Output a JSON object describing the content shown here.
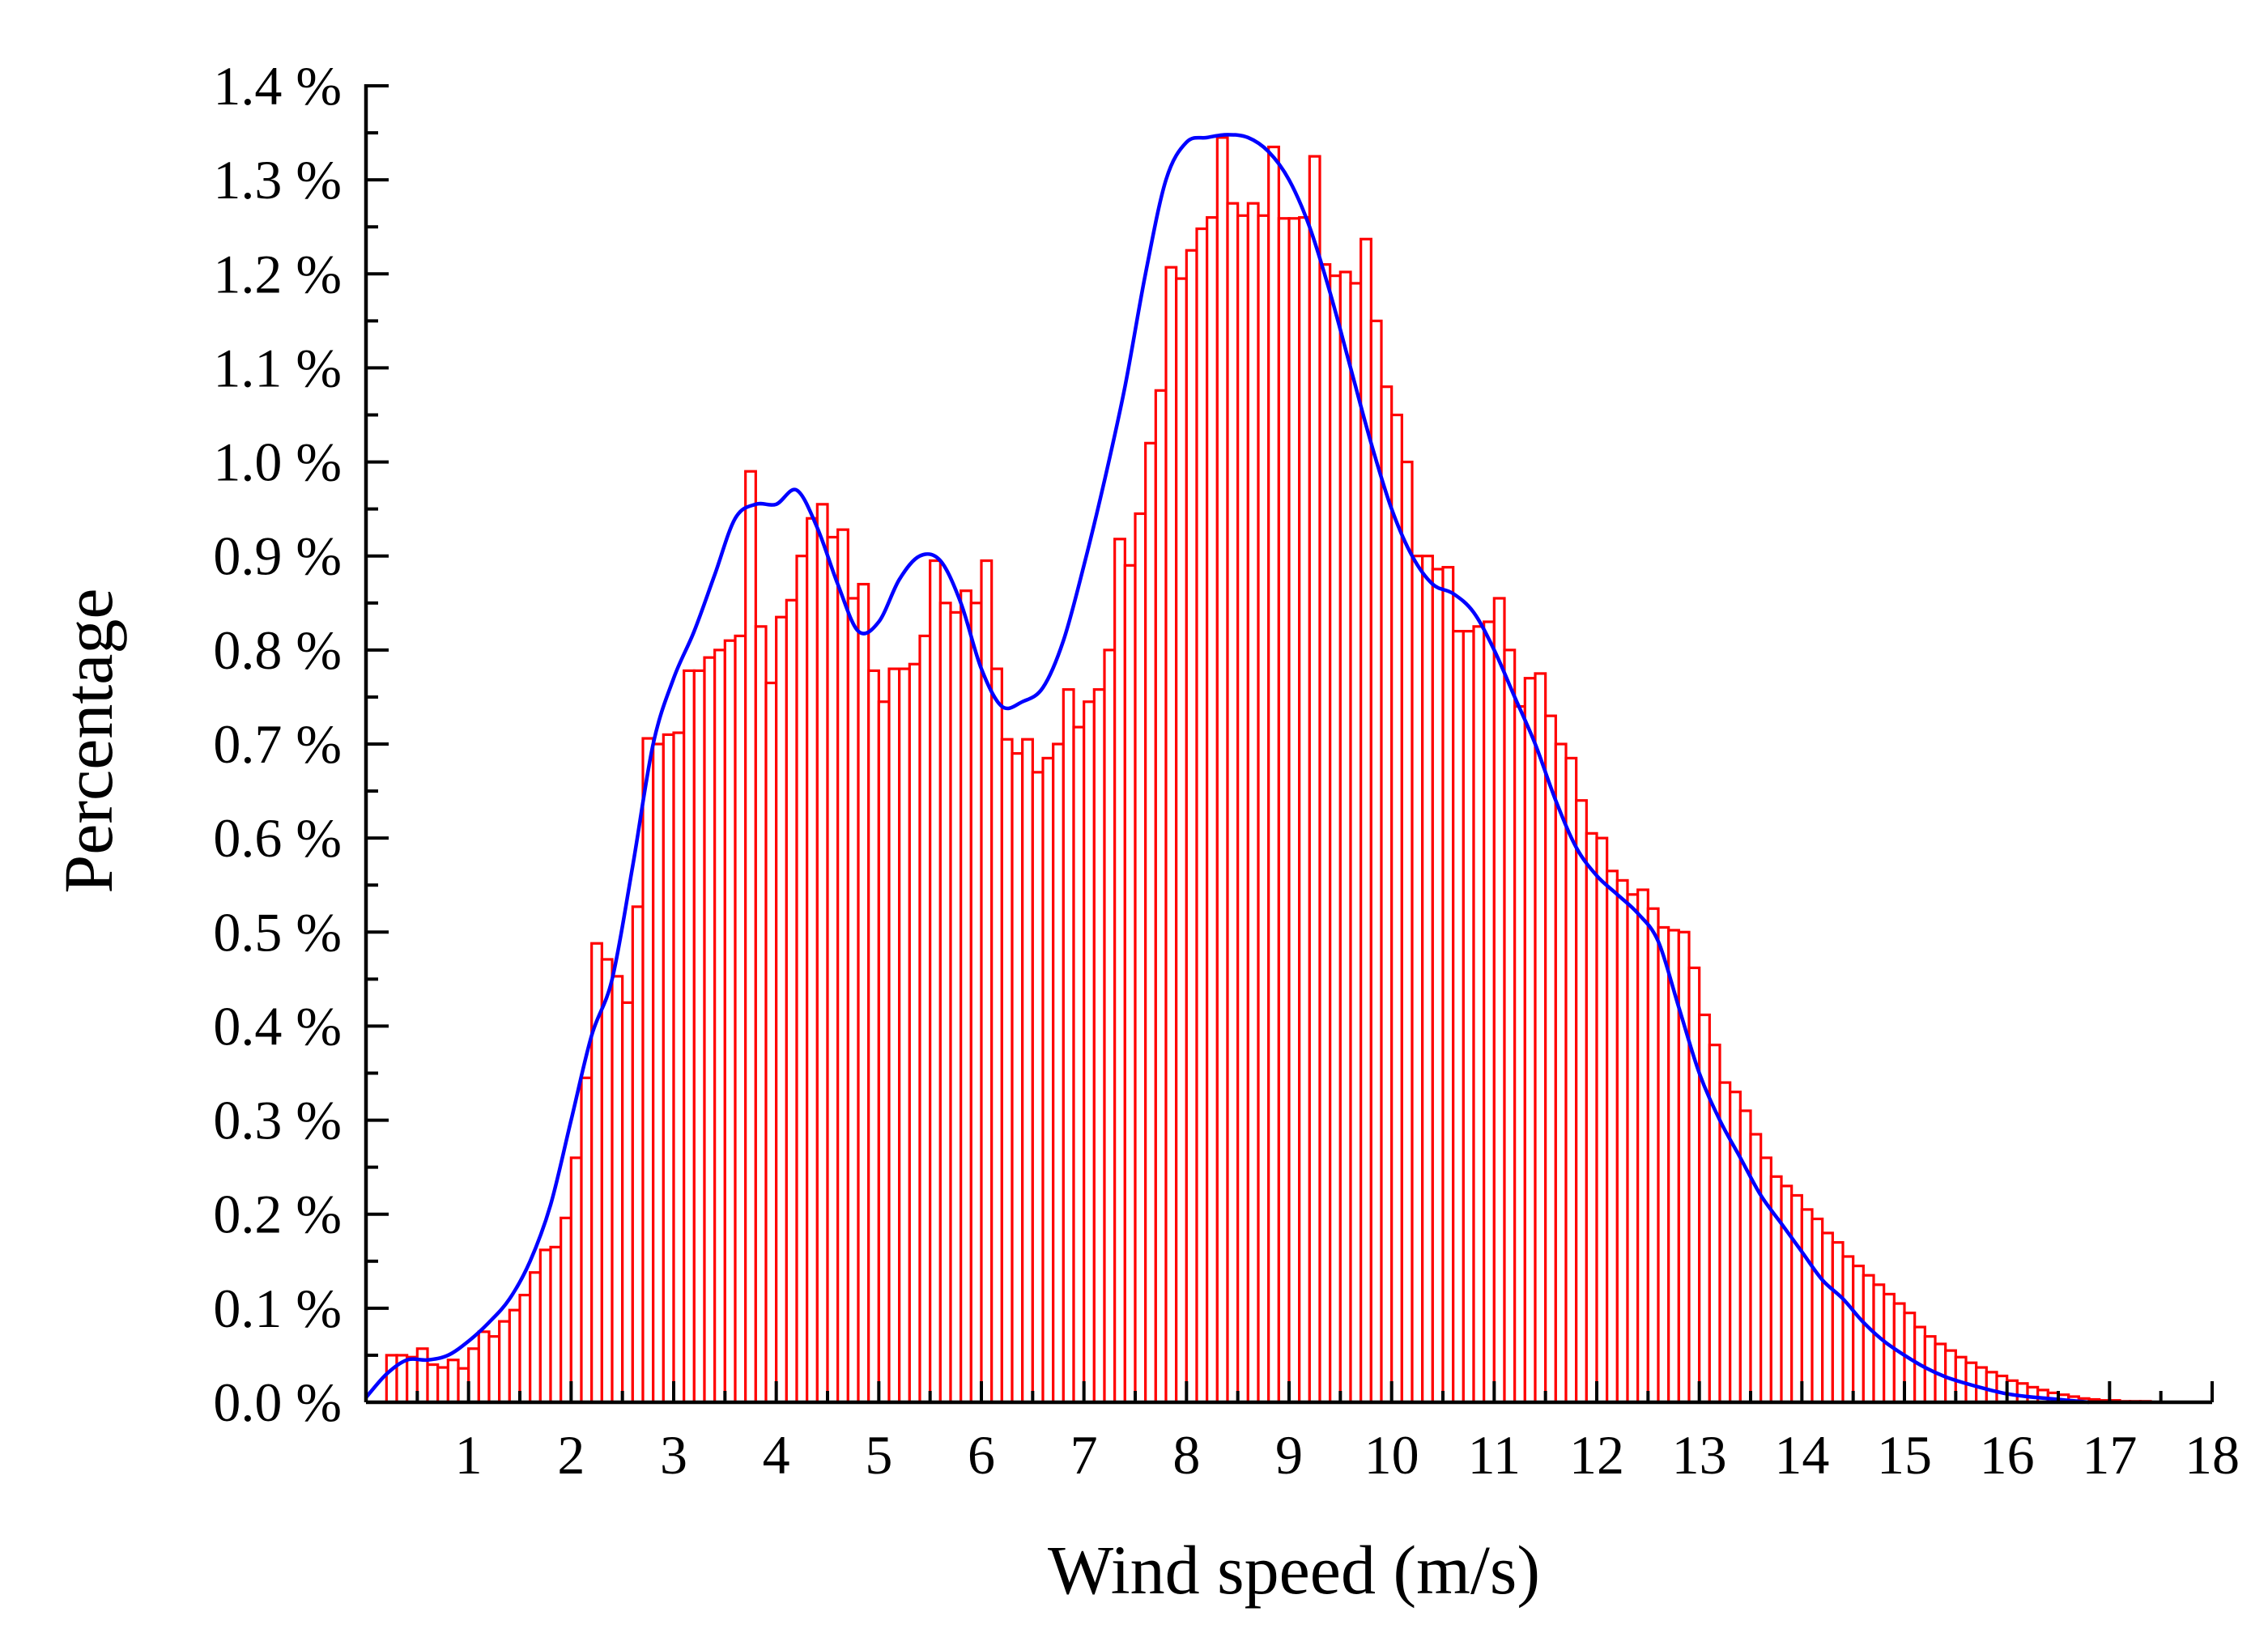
{
  "chart_data": {
    "type": "bar",
    "title": "",
    "xlabel": "Wind speed (m/s)",
    "ylabel": "Percentage",
    "xlim": [
      0,
      18
    ],
    "ylim": [
      0,
      1.4
    ],
    "x_ticks": [
      "1",
      "2",
      "3",
      "4",
      "5",
      "6",
      "7",
      "8",
      "9",
      "10",
      "11",
      "12",
      "13",
      "14",
      "15",
      "16",
      "17",
      "18"
    ],
    "y_ticks": [
      "0.0 %",
      "0.1 %",
      "0.2 %",
      "0.3 %",
      "0.4 %",
      "0.5 %",
      "0.6 %",
      "0.7 %",
      "0.8 %",
      "0.9 %",
      "1.0 %",
      "1.1 %",
      "1.2 %",
      "1.3 %",
      "1.4 %"
    ],
    "grid": false,
    "bin_width": 0.1,
    "series": [
      {
        "kind": "histogram",
        "color": "#ff0000",
        "bin_start": [
          0.2,
          0.3,
          0.4,
          0.5,
          0.6,
          0.7,
          0.8,
          0.9,
          1.0,
          1.1,
          1.2,
          1.3,
          1.4,
          1.5,
          1.6,
          1.7,
          1.8,
          1.9,
          2.0,
          2.1,
          2.2,
          2.3,
          2.4,
          2.5,
          2.6,
          2.7,
          2.8,
          2.9,
          3.0,
          3.1,
          3.2,
          3.3,
          3.4,
          3.5,
          3.6,
          3.7,
          3.8,
          3.9,
          4.0,
          4.1,
          4.2,
          4.3,
          4.4,
          4.5,
          4.6,
          4.7,
          4.8,
          4.9,
          5.0,
          5.1,
          5.2,
          5.3,
          5.4,
          5.5,
          5.6,
          5.7,
          5.8,
          5.9,
          6.0,
          6.1,
          6.2,
          6.3,
          6.4,
          6.5,
          6.6,
          6.7,
          6.8,
          6.9,
          7.0,
          7.1,
          7.2,
          7.3,
          7.4,
          7.5,
          7.6,
          7.7,
          7.8,
          7.9,
          8.0,
          8.1,
          8.2,
          8.3,
          8.4,
          8.5,
          8.6,
          8.7,
          8.8,
          8.9,
          9.0,
          9.1,
          9.2,
          9.3,
          9.4,
          9.5,
          9.6,
          9.7,
          9.8,
          9.9,
          10.0,
          10.1,
          10.2,
          10.3,
          10.4,
          10.5,
          10.6,
          10.7,
          10.8,
          10.9,
          11.0,
          11.1,
          11.2,
          11.3,
          11.4,
          11.5,
          11.6,
          11.7,
          11.8,
          11.9,
          12.0,
          12.1,
          12.2,
          12.3,
          12.4,
          12.5,
          12.6,
          12.7,
          12.8,
          12.9,
          13.0,
          13.1,
          13.2,
          13.3,
          13.4,
          13.5,
          13.6,
          13.7,
          13.8,
          13.9,
          14.0,
          14.1,
          14.2,
          14.3,
          14.4,
          14.5,
          14.6,
          14.7,
          14.8,
          14.9,
          15.0,
          15.1,
          15.2,
          15.3,
          15.4,
          15.5,
          15.6,
          15.7,
          15.8,
          15.9,
          16.0,
          16.1,
          16.2,
          16.3,
          16.4,
          16.5,
          16.6,
          16.7,
          16.8,
          16.9,
          17.0,
          17.1,
          17.2,
          17.3
        ],
        "values": [
          0.05,
          0.05,
          0.048,
          0.057,
          0.04,
          0.037,
          0.045,
          0.036,
          0.057,
          0.075,
          0.07,
          0.086,
          0.098,
          0.114,
          0.138,
          0.162,
          0.165,
          0.196,
          0.26,
          0.345,
          0.488,
          0.471,
          0.453,
          0.425,
          0.527,
          0.706,
          0.7,
          0.71,
          0.712,
          0.778,
          0.778,
          0.792,
          0.8,
          0.81,
          0.815,
          0.99,
          0.825,
          0.765,
          0.835,
          0.853,
          0.9,
          0.94,
          0.955,
          0.92,
          0.928,
          0.855,
          0.87,
          0.778,
          0.745,
          0.78,
          0.78,
          0.785,
          0.815,
          0.895,
          0.85,
          0.84,
          0.863,
          0.85,
          0.895,
          0.78,
          0.705,
          0.69,
          0.705,
          0.67,
          0.685,
          0.7,
          0.758,
          0.718,
          0.745,
          0.758,
          0.8,
          0.918,
          0.89,
          0.945,
          1.02,
          1.076,
          1.207,
          1.195,
          1.225,
          1.248,
          1.26,
          1.345,
          1.275,
          1.262,
          1.275,
          1.262,
          1.335,
          1.259,
          1.259,
          1.26,
          1.325,
          1.21,
          1.198,
          1.202,
          1.19,
          1.237,
          1.15,
          1.08,
          1.05,
          1.0,
          0.9,
          0.9,
          0.886,
          0.888,
          0.82,
          0.82,
          0.825,
          0.83,
          0.855,
          0.8,
          0.74,
          0.77,
          0.775,
          0.73,
          0.7,
          0.685,
          0.64,
          0.605,
          0.6,
          0.565,
          0.555,
          0.54,
          0.545,
          0.525,
          0.505,
          0.502,
          0.5,
          0.462,
          0.412,
          0.38,
          0.34,
          0.33,
          0.31,
          0.285,
          0.26,
          0.24,
          0.23,
          0.22,
          0.205,
          0.195,
          0.18,
          0.17,
          0.155,
          0.145,
          0.135,
          0.125,
          0.115,
          0.105,
          0.095,
          0.08,
          0.07,
          0.062,
          0.055,
          0.048,
          0.042,
          0.037,
          0.032,
          0.028,
          0.023,
          0.02,
          0.016,
          0.013,
          0.01,
          0.008,
          0.006,
          0.004,
          0.003,
          0.002,
          0.002,
          0.001,
          0.001,
          0.001
        ]
      },
      {
        "kind": "density-curve",
        "color": "#0000ff",
        "x": [
          0.0,
          0.2,
          0.4,
          0.6,
          0.8,
          1.0,
          1.2,
          1.4,
          1.6,
          1.8,
          2.0,
          2.2,
          2.4,
          2.6,
          2.8,
          3.0,
          3.2,
          3.4,
          3.6,
          3.8,
          4.0,
          4.2,
          4.4,
          4.6,
          4.8,
          5.0,
          5.2,
          5.4,
          5.6,
          5.8,
          6.0,
          6.2,
          6.4,
          6.6,
          6.8,
          7.0,
          7.2,
          7.4,
          7.6,
          7.8,
          8.0,
          8.2,
          8.4,
          8.6,
          8.8,
          9.0,
          9.2,
          9.4,
          9.6,
          9.8,
          10.0,
          10.2,
          10.4,
          10.6,
          10.8,
          11.0,
          11.2,
          11.4,
          11.6,
          11.8,
          12.0,
          12.2,
          12.4,
          12.6,
          12.8,
          13.0,
          13.2,
          13.4,
          13.6,
          13.8,
          14.0,
          14.2,
          14.4,
          14.6,
          14.8,
          15.0,
          15.2,
          15.4,
          15.6,
          15.8,
          16.0,
          16.2,
          16.4,
          16.6,
          16.8
        ],
        "y": [
          0.005,
          0.03,
          0.045,
          0.045,
          0.05,
          0.065,
          0.085,
          0.11,
          0.15,
          0.21,
          0.3,
          0.39,
          0.45,
          0.57,
          0.7,
          0.77,
          0.82,
          0.88,
          0.94,
          0.955,
          0.955,
          0.97,
          0.93,
          0.87,
          0.82,
          0.83,
          0.875,
          0.9,
          0.895,
          0.85,
          0.78,
          0.74,
          0.745,
          0.76,
          0.81,
          0.89,
          0.98,
          1.08,
          1.2,
          1.3,
          1.34,
          1.345,
          1.348,
          1.345,
          1.33,
          1.3,
          1.25,
          1.18,
          1.1,
          1.02,
          0.95,
          0.9,
          0.87,
          0.86,
          0.84,
          0.8,
          0.75,
          0.7,
          0.64,
          0.59,
          0.56,
          0.54,
          0.52,
          0.49,
          0.42,
          0.35,
          0.3,
          0.26,
          0.22,
          0.19,
          0.16,
          0.13,
          0.11,
          0.085,
          0.065,
          0.05,
          0.037,
          0.027,
          0.02,
          0.014,
          0.009,
          0.006,
          0.004,
          0.002,
          0.0
        ]
      }
    ]
  }
}
